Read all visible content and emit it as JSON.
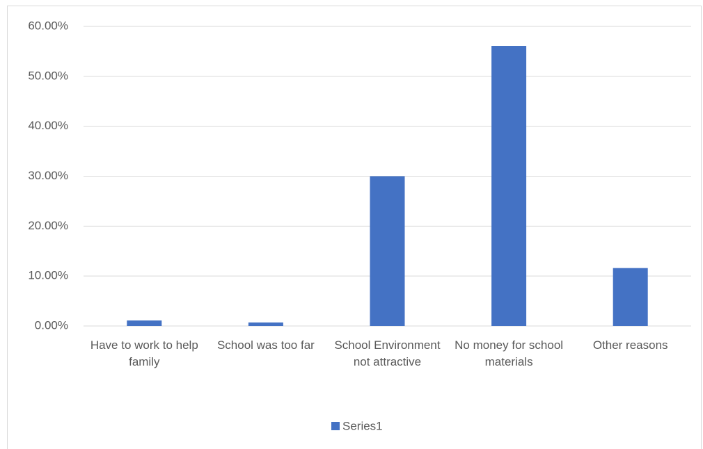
{
  "chart_data": {
    "type": "bar",
    "categories": [
      "Have to work to help family",
      "School was too far",
      "School Environment not attractive",
      "No money for school materials",
      "Other reasons"
    ],
    "series": [
      {
        "name": "Series1",
        "color": "#4472c4",
        "values": [
          1.1,
          0.7,
          30.0,
          56.1,
          11.6
        ]
      }
    ],
    "ylim": [
      0,
      60
    ],
    "yticks": [
      {
        "value": 0,
        "label": "0.00%"
      },
      {
        "value": 10,
        "label": "10.00%"
      },
      {
        "value": 20,
        "label": "20.00%"
      },
      {
        "value": 30,
        "label": "30.00%"
      },
      {
        "value": 40,
        "label": "40.00%"
      },
      {
        "value": 50,
        "label": "50.00%"
      },
      {
        "value": 60,
        "label": "60.00%"
      }
    ],
    "grid": true,
    "legend": "bottom"
  }
}
